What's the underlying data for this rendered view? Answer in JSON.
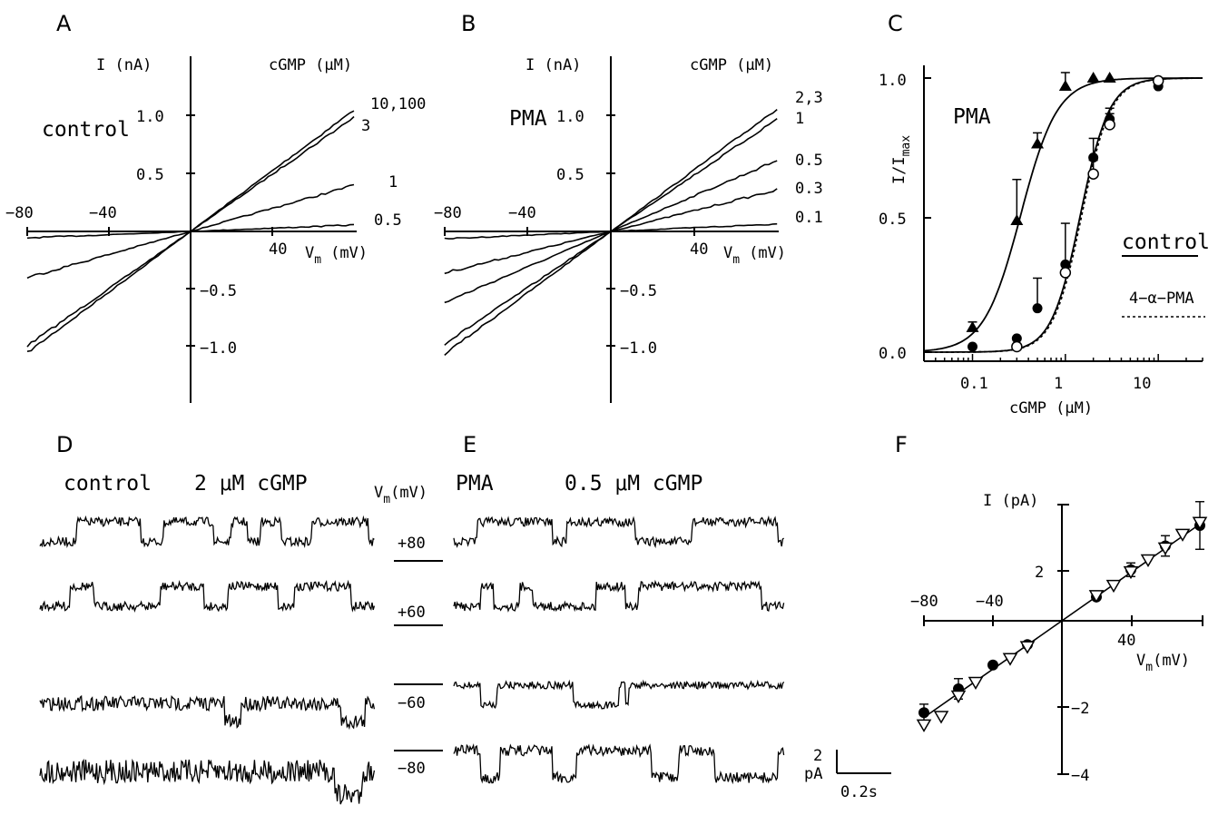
{
  "panels": {
    "A": {
      "label": "A",
      "condition": "control",
      "y_axis_label": "I (nA)",
      "x_axis_label": "V",
      "x_axis_subscript": "m",
      "x_axis_unit": "(mV)",
      "legend_title": "cGMP (μM)",
      "y_ticks": [
        "1.0",
        "0.5",
        "−0.5",
        "−1.0"
      ],
      "x_ticks": [
        "−80",
        "−40",
        "40"
      ],
      "curve_labels": [
        "10,100",
        "3",
        "1",
        "0.5"
      ]
    },
    "B": {
      "label": "B",
      "condition": "PMA",
      "y_axis_label": "I (nA)",
      "x_axis_label": "V",
      "x_axis_subscript": "m",
      "x_axis_unit": "(mV)",
      "legend_title": "cGMP (μM)",
      "y_ticks": [
        "1.0",
        "0.5",
        "−0.5",
        "−1.0"
      ],
      "x_ticks": [
        "−80",
        "−40",
        "40"
      ],
      "curve_labels": [
        "2,3",
        "1",
        "0.5",
        "0.3",
        "0.1"
      ]
    },
    "C": {
      "label": "C",
      "y_label_main": "I/I",
      "y_label_sub": "max",
      "x_label": "cGMP (μM)",
      "y_ticks": [
        "1.0",
        "0.5",
        "0.0"
      ],
      "x_ticks": [
        "0.1",
        "1",
        "10"
      ],
      "pma_label": "PMA",
      "control_label": "control",
      "alpha_label": "4−α−PMA"
    },
    "D": {
      "label": "D",
      "title_condition": "control",
      "title_conc": "2 μM cGMP",
      "vm_header_main": "V",
      "vm_header_sub": "m",
      "vm_header_unit": "(mV)",
      "voltages": [
        "+80",
        "+60",
        "−60",
        "−80"
      ]
    },
    "E": {
      "label": "E",
      "title_condition": "PMA",
      "title_conc": "0.5 μM cGMP",
      "scale_y": "2",
      "scale_y_unit": "pA",
      "scale_x": "0.2s"
    },
    "F": {
      "label": "F",
      "y_axis_label": "I (pA)",
      "x_axis_label": "V",
      "x_axis_subscript": "m",
      "x_axis_unit": "(mV)",
      "y_ticks": [
        "2",
        "−2",
        "−4"
      ],
      "x_ticks": [
        "−80",
        "−40",
        "40"
      ]
    }
  },
  "chart_data": [
    {
      "panel": "A",
      "type": "line",
      "title": "",
      "xlabel": "V (mV)",
      "ylabel": "I (nA)",
      "xlim": [
        -80,
        80
      ],
      "ylim": [
        -1.5,
        1.5
      ],
      "series": [
        {
          "name": "10,100",
          "slope_nA_per_mV": 0.01315
        },
        {
          "name": "3",
          "slope_nA_per_mV": 0.0124
        },
        {
          "name": "1",
          "slope_nA_per_mV": 0.005
        },
        {
          "name": "0.5",
          "slope_nA_per_mV": 0.0007
        }
      ]
    },
    {
      "panel": "B",
      "type": "line",
      "title": "",
      "xlabel": "V (mV)",
      "ylabel": "I (nA)",
      "xlim": [
        -80,
        80
      ],
      "ylim": [
        -1.5,
        1.5
      ],
      "series": [
        {
          "name": "2,3",
          "slope_nA_per_mV": 0.0133
        },
        {
          "name": "1",
          "slope_nA_per_mV": 0.0122
        },
        {
          "name": "0.5",
          "slope_nA_per_mV": 0.0077
        },
        {
          "name": "0.3",
          "slope_nA_per_mV": 0.0045
        },
        {
          "name": "0.1",
          "slope_nA_per_mV": 0.0008
        }
      ]
    },
    {
      "panel": "C",
      "type": "scatter",
      "title": "",
      "xlabel": "cGMP (μM)",
      "ylabel": "I/Imax",
      "x_scale": "log",
      "xlim": [
        0.03,
        30
      ],
      "ylim": [
        0,
        1
      ],
      "series": [
        {
          "name": "PMA",
          "marker": "filled-triangle",
          "x": [
            0.1,
            0.3,
            0.5,
            1,
            2,
            3
          ],
          "y": [
            0.09,
            0.48,
            0.76,
            0.97,
            1.0,
            1.0
          ],
          "err": [
            0.02,
            0.15,
            0.04,
            0.05,
            0,
            0
          ],
          "fit": {
            "k": 0.33,
            "n": 2.2
          }
        },
        {
          "name": "control",
          "marker": "filled-circle",
          "x": [
            0.1,
            0.3,
            0.5,
            1,
            2,
            3,
            10
          ],
          "y": [
            0.02,
            0.05,
            0.16,
            0.32,
            0.71,
            0.85,
            0.97
          ],
          "err": [
            0,
            0,
            0.11,
            0.15,
            0.07,
            0.02,
            0
          ],
          "fit": {
            "k": 1.45,
            "n": 2.8
          }
        },
        {
          "name": "4-α-PMA",
          "marker": "open-circle",
          "x": [
            0.3,
            1,
            2,
            3,
            10
          ],
          "y": [
            0.02,
            0.29,
            0.65,
            0.83,
            0.99
          ],
          "err": [
            0,
            0,
            0.05,
            0.06,
            0
          ],
          "fit": {
            "k": 1.5,
            "n": 2.8
          }
        }
      ]
    },
    {
      "panel": "F",
      "type": "scatter",
      "title": "",
      "xlabel": "V (mV)",
      "ylabel": "I (pA)",
      "xlim": [
        -80,
        80
      ],
      "ylim": [
        -4,
        3.2
      ],
      "series": [
        {
          "name": "control",
          "marker": "filled-circle",
          "x": [
            -80,
            -60,
            -40,
            -20,
            20,
            40,
            60,
            80
          ],
          "y": [
            -2.7,
            -2.0,
            -1.3,
            -0.7,
            0.7,
            1.5,
            2.2,
            2.8
          ]
        },
        {
          "name": "PMA",
          "marker": "open-triangle-down",
          "x": [
            -80,
            -70,
            -60,
            -50,
            -30,
            -20,
            20,
            30,
            40,
            50,
            60,
            70,
            80
          ],
          "y": [
            -3.05,
            -2.8,
            -2.2,
            -1.8,
            -1.1,
            -0.75,
            0.75,
            1.05,
            1.45,
            1.8,
            2.15,
            2.55,
            2.9
          ]
        },
        {
          "name": "fit",
          "type": "line",
          "slope_pA_per_mV": 0.0355
        }
      ]
    }
  ]
}
